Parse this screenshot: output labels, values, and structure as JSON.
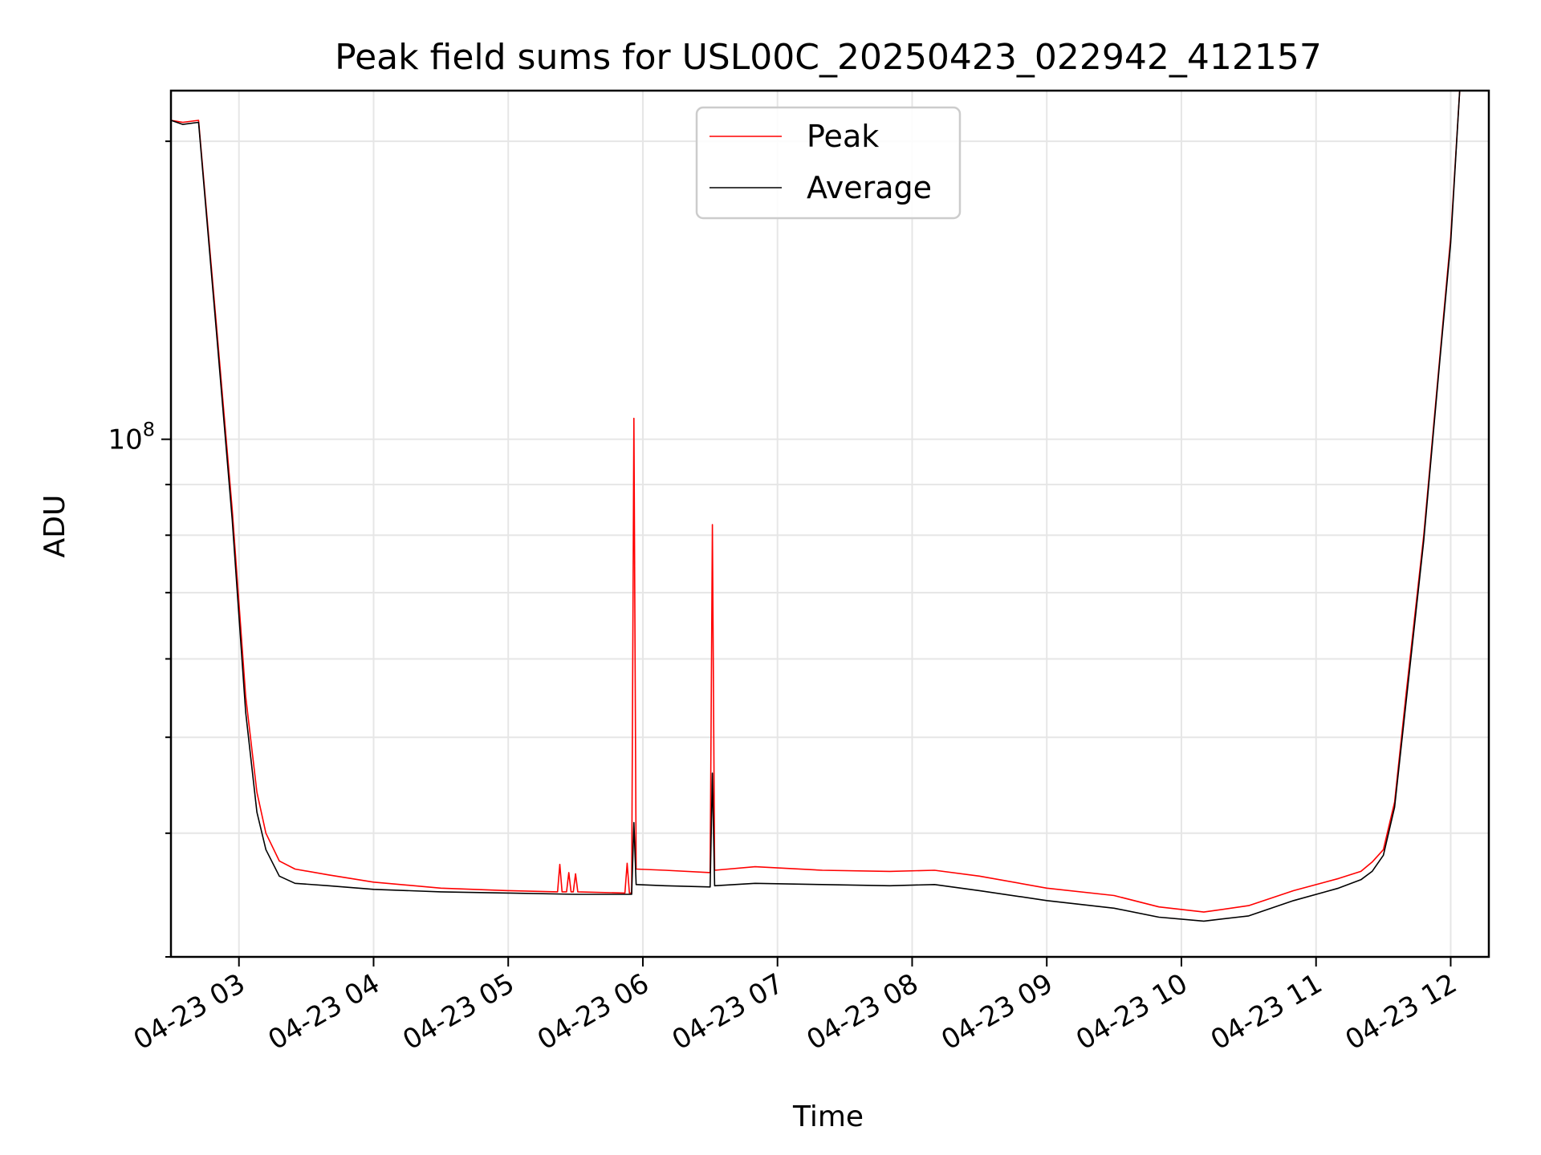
{
  "chart_data": {
    "type": "line",
    "title": "Peak field sums for USL00C_20250423_022942_412157",
    "xlabel": "Time",
    "ylabel": "ADU",
    "y_scale": "log",
    "y_tick_labels": [
      {
        "base": "10",
        "exp": "8",
        "value": 100000000
      }
    ],
    "x_tick_labels": [
      "04-23 03",
      "04-23 04",
      "04-23 05",
      "04-23 06",
      "04-23 07",
      "04-23 08",
      "04-23 09",
      "04-23 10",
      "04-23 11",
      "04-23 12"
    ],
    "x_tick_values": [
      "2025-04-23T03:00",
      "2025-04-23T04:00",
      "2025-04-23T05:00",
      "2025-04-23T06:00",
      "2025-04-23T07:00",
      "2025-04-23T08:00",
      "2025-04-23T09:00",
      "2025-04-23T10:00",
      "2025-04-23T11:00",
      "2025-04-23T12:00"
    ],
    "xlim": [
      "2025-04-23T02:29:42",
      "2025-04-23T12:17:00"
    ],
    "ylim": [
      30000000,
      225000000
    ],
    "grid": true,
    "legend_position": "top-center",
    "series": [
      {
        "name": "Peak",
        "color": "#ff0000",
        "points": [
          [
            "2025-04-23T02:29:42",
            210000000
          ],
          [
            "2025-04-23T02:35:00",
            209000000
          ],
          [
            "2025-04-23T02:42:00",
            210000000
          ],
          [
            "2025-04-23T02:50:00",
            130000000
          ],
          [
            "2025-04-23T02:57:00",
            85000000
          ],
          [
            "2025-04-23T03:03:00",
            55000000
          ],
          [
            "2025-04-23T03:08:00",
            44000000
          ],
          [
            "2025-04-23T03:12:00",
            40000000
          ],
          [
            "2025-04-23T03:18:00",
            37500000
          ],
          [
            "2025-04-23T03:25:00",
            36800000
          ],
          [
            "2025-04-23T03:40:00",
            36300000
          ],
          [
            "2025-04-23T04:00:00",
            35700000
          ],
          [
            "2025-04-23T04:30:00",
            35200000
          ],
          [
            "2025-04-23T05:00:00",
            35000000
          ],
          [
            "2025-04-23T05:22:00",
            34900000
          ],
          [
            "2025-04-23T05:23:00",
            37200000
          ],
          [
            "2025-04-23T05:24:00",
            34900000
          ],
          [
            "2025-04-23T05:26:00",
            34900000
          ],
          [
            "2025-04-23T05:27:00",
            36500000
          ],
          [
            "2025-04-23T05:28:00",
            34900000
          ],
          [
            "2025-04-23T05:29:00",
            34900000
          ],
          [
            "2025-04-23T05:30:00",
            36400000
          ],
          [
            "2025-04-23T05:31:00",
            34900000
          ],
          [
            "2025-04-23T05:52:00",
            34800000
          ],
          [
            "2025-04-23T05:53:00",
            37300000
          ],
          [
            "2025-04-23T05:54:00",
            34800000
          ],
          [
            "2025-04-23T05:55:00",
            34800000
          ],
          [
            "2025-04-23T05:56:00",
            105000000
          ],
          [
            "2025-04-23T05:57:00",
            36800000
          ],
          [
            "2025-04-23T06:10:00",
            36700000
          ],
          [
            "2025-04-23T06:30:00",
            36500000
          ],
          [
            "2025-04-23T06:31:00",
            82000000
          ],
          [
            "2025-04-23T06:32:00",
            36700000
          ],
          [
            "2025-04-23T06:50:00",
            37000000
          ],
          [
            "2025-04-23T07:20:00",
            36700000
          ],
          [
            "2025-04-23T07:50:00",
            36600000
          ],
          [
            "2025-04-23T08:10:00",
            36700000
          ],
          [
            "2025-04-23T08:30:00",
            36200000
          ],
          [
            "2025-04-23T09:00:00",
            35200000
          ],
          [
            "2025-04-23T09:30:00",
            34600000
          ],
          [
            "2025-04-23T09:50:00",
            33700000
          ],
          [
            "2025-04-23T10:10:00",
            33300000
          ],
          [
            "2025-04-23T10:30:00",
            33800000
          ],
          [
            "2025-04-23T10:50:00",
            35000000
          ],
          [
            "2025-04-23T11:10:00",
            36000000
          ],
          [
            "2025-04-23T11:20:00",
            36600000
          ],
          [
            "2025-04-23T11:25:00",
            37400000
          ],
          [
            "2025-04-23T11:30:00",
            38500000
          ],
          [
            "2025-04-23T11:35:00",
            43000000
          ],
          [
            "2025-04-23T11:40:00",
            55000000
          ],
          [
            "2025-04-23T11:48:00",
            80000000
          ],
          [
            "2025-04-23T11:55:00",
            120000000
          ],
          [
            "2025-04-23T12:00:00",
            160000000
          ],
          [
            "2025-04-23T12:04:00",
            225000000
          ]
        ]
      },
      {
        "name": "Average",
        "color": "#000000",
        "points": [
          [
            "2025-04-23T02:29:42",
            210000000
          ],
          [
            "2025-04-23T02:35:00",
            208000000
          ],
          [
            "2025-04-23T02:42:00",
            209000000
          ],
          [
            "2025-04-23T02:50:00",
            128000000
          ],
          [
            "2025-04-23T02:57:00",
            83000000
          ],
          [
            "2025-04-23T03:03:00",
            53000000
          ],
          [
            "2025-04-23T03:08:00",
            42000000
          ],
          [
            "2025-04-23T03:12:00",
            38500000
          ],
          [
            "2025-04-23T03:18:00",
            36200000
          ],
          [
            "2025-04-23T03:25:00",
            35600000
          ],
          [
            "2025-04-23T03:40:00",
            35400000
          ],
          [
            "2025-04-23T04:00:00",
            35100000
          ],
          [
            "2025-04-23T04:30:00",
            34900000
          ],
          [
            "2025-04-23T05:00:00",
            34800000
          ],
          [
            "2025-04-23T05:30:00",
            34700000
          ],
          [
            "2025-04-23T05:55:00",
            34700000
          ],
          [
            "2025-04-23T05:56:00",
            41000000
          ],
          [
            "2025-04-23T05:57:00",
            35500000
          ],
          [
            "2025-04-23T06:10:00",
            35400000
          ],
          [
            "2025-04-23T06:30:00",
            35300000
          ],
          [
            "2025-04-23T06:31:00",
            46000000
          ],
          [
            "2025-04-23T06:32:00",
            35400000
          ],
          [
            "2025-04-23T06:50:00",
            35600000
          ],
          [
            "2025-04-23T07:20:00",
            35500000
          ],
          [
            "2025-04-23T07:50:00",
            35400000
          ],
          [
            "2025-04-23T08:10:00",
            35500000
          ],
          [
            "2025-04-23T08:30:00",
            35000000
          ],
          [
            "2025-04-23T09:00:00",
            34200000
          ],
          [
            "2025-04-23T09:30:00",
            33600000
          ],
          [
            "2025-04-23T09:50:00",
            32900000
          ],
          [
            "2025-04-23T10:10:00",
            32600000
          ],
          [
            "2025-04-23T10:30:00",
            33000000
          ],
          [
            "2025-04-23T10:50:00",
            34200000
          ],
          [
            "2025-04-23T11:10:00",
            35200000
          ],
          [
            "2025-04-23T11:20:00",
            35900000
          ],
          [
            "2025-04-23T11:25:00",
            36600000
          ],
          [
            "2025-04-23T11:30:00",
            38000000
          ],
          [
            "2025-04-23T11:35:00",
            42500000
          ],
          [
            "2025-04-23T11:40:00",
            54000000
          ],
          [
            "2025-04-23T11:48:00",
            79000000
          ],
          [
            "2025-04-23T11:55:00",
            119000000
          ],
          [
            "2025-04-23T12:00:00",
            158000000
          ],
          [
            "2025-04-23T12:04:00",
            225000000
          ]
        ]
      }
    ]
  }
}
